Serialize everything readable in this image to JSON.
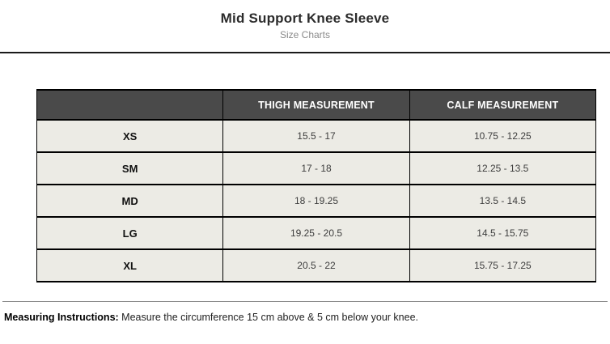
{
  "page": {
    "title": "Mid Support Knee Sleeve",
    "subtitle": "Size Charts"
  },
  "size_table": {
    "columns": [
      "",
      "THIGH MEASUREMENT",
      "CALF MEASUREMENT"
    ],
    "rows": [
      {
        "size": "XS",
        "thigh": "15.5 - 17",
        "calf": "10.75 - 12.25"
      },
      {
        "size": "SM",
        "thigh": "17 - 18",
        "calf": "12.25 - 13.5"
      },
      {
        "size": "MD",
        "thigh": "18 - 19.25",
        "calf": "13.5 - 14.5"
      },
      {
        "size": "LG",
        "thigh": "19.25 - 20.5",
        "calf": "14.5 - 15.75"
      },
      {
        "size": "XL",
        "thigh": "20.5 - 22",
        "calf": "15.75 - 17.25"
      }
    ]
  },
  "footer": {
    "instructions_label": "Measuring Instructions:",
    "instructions_text": "Measure the circumference 15 cm above & 5 cm below your knee."
  },
  "colors": {
    "header_bg": "#4a4a4a",
    "header_text": "#ffffff",
    "row_bg": "#ecebe5",
    "border": "#000000",
    "divider_top": "#1a1a1a",
    "divider_bottom": "#8c8c8c"
  }
}
